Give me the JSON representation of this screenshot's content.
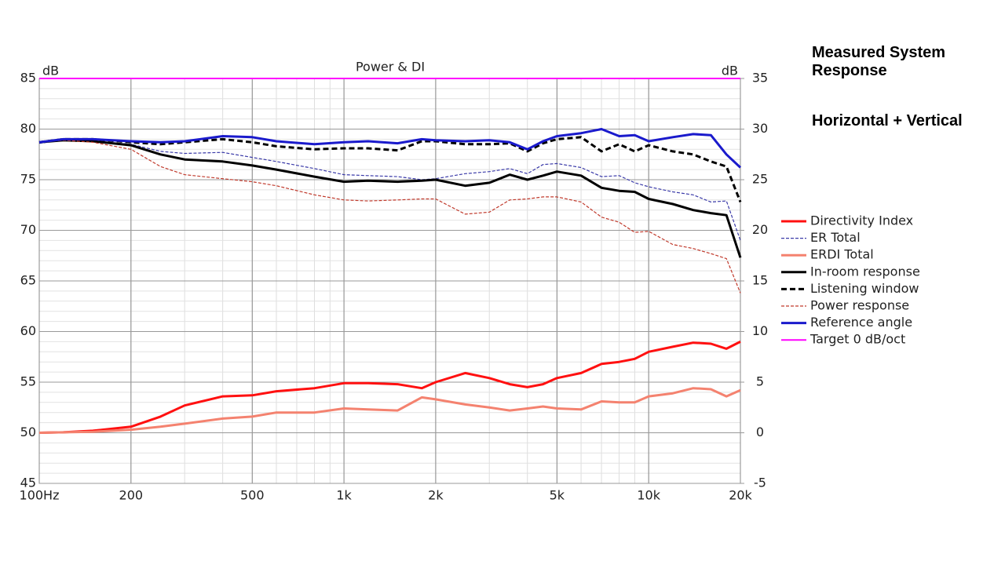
{
  "chart_data": {
    "type": "line",
    "title": "Power & DI",
    "y_label": "dB",
    "y2_label": "dB",
    "annotations": [
      "Measured System Response",
      "Horizontal + Vertical"
    ],
    "log_x": true,
    "grid": true,
    "legend": "right",
    "xlim": [
      100,
      20000
    ],
    "xticks": [
      {
        "value": 100,
        "label": "100Hz"
      },
      200,
      500,
      {
        "value": 1000,
        "label": "1k"
      },
      {
        "value": 2000,
        "label": "2k"
      },
      {
        "value": 5000,
        "label": "5k"
      },
      {
        "value": 10000,
        "label": "10k"
      },
      {
        "value": 20000,
        "label": "20k"
      }
    ],
    "ylim": [
      45,
      85
    ],
    "yticks": [
      45,
      50,
      55,
      60,
      65,
      70,
      75,
      80,
      85
    ],
    "y2lim": [
      -5,
      35
    ],
    "y2ticks": [
      -5,
      0,
      5,
      10,
      15,
      20,
      25,
      30,
      35
    ],
    "x": [
      100,
      120,
      150,
      200,
      250,
      300,
      400,
      500,
      600,
      800,
      1000,
      1200,
      1500,
      1800,
      2000,
      2500,
      3000,
      3500,
      4000,
      4500,
      5000,
      6000,
      7000,
      8000,
      9000,
      10000,
      12000,
      14000,
      16000,
      18000,
      20000
    ],
    "series": [
      {
        "name": "Directivity Index",
        "color": "#ff1010",
        "width": 3,
        "dash": false,
        "axis": "y2",
        "values": [
          0,
          0.05,
          0.2,
          0.6,
          1.6,
          2.7,
          3.6,
          3.7,
          4.1,
          4.4,
          4.9,
          4.9,
          4.8,
          4.4,
          5.0,
          5.9,
          5.4,
          4.8,
          4.5,
          4.8,
          5.4,
          5.9,
          6.8,
          7.0,
          7.3,
          8.0,
          8.5,
          8.9,
          8.8,
          8.3,
          9.0
        ]
      },
      {
        "name": "ER Total",
        "color": "#3a3aa8",
        "width": 1.2,
        "dash": true,
        "values": [
          78.6,
          78.9,
          78.8,
          78.5,
          77.8,
          77.6,
          77.7,
          77.2,
          76.8,
          76.1,
          75.5,
          75.4,
          75.3,
          75.0,
          75.1,
          75.6,
          75.8,
          76.1,
          75.6,
          76.5,
          76.6,
          76.2,
          75.3,
          75.4,
          74.7,
          74.3,
          73.8,
          73.5,
          72.8,
          72.9,
          69.0
        ]
      },
      {
        "name": "ERDI Total",
        "color": "#f4826f",
        "width": 3,
        "dash": false,
        "axis": "y2",
        "values": [
          0,
          0.05,
          0.1,
          0.3,
          0.6,
          0.9,
          1.4,
          1.6,
          2.0,
          2.0,
          2.4,
          2.3,
          2.2,
          3.5,
          3.3,
          2.8,
          2.5,
          2.2,
          2.4,
          2.6,
          2.4,
          2.3,
          3.1,
          3.0,
          3.0,
          3.6,
          3.9,
          4.4,
          4.3,
          3.6,
          4.2
        ]
      },
      {
        "name": "In-room response",
        "color": "#000000",
        "width": 3,
        "dash": false,
        "values": [
          78.7,
          78.9,
          78.8,
          78.4,
          77.5,
          77.0,
          76.8,
          76.4,
          76.0,
          75.3,
          74.8,
          74.9,
          74.8,
          74.9,
          75.0,
          74.4,
          74.7,
          75.5,
          75.0,
          75.4,
          75.8,
          75.4,
          74.2,
          73.9,
          73.8,
          73.1,
          72.6,
          72.0,
          71.7,
          71.5,
          67.3
        ]
      },
      {
        "name": "Listening window",
        "color": "#000000",
        "width": 3,
        "dash": true,
        "values": [
          78.7,
          79.0,
          79.0,
          78.7,
          78.5,
          78.7,
          79.0,
          78.7,
          78.3,
          78.0,
          78.1,
          78.1,
          77.9,
          78.8,
          78.8,
          78.5,
          78.5,
          78.6,
          77.8,
          78.6,
          79.0,
          79.2,
          77.8,
          78.5,
          77.8,
          78.4,
          77.8,
          77.5,
          76.8,
          76.3,
          72.8
        ]
      },
      {
        "name": "Power response",
        "color": "#c0392b",
        "width": 1.2,
        "dash": true,
        "values": [
          78.7,
          78.9,
          78.7,
          78.0,
          76.3,
          75.5,
          75.1,
          74.8,
          74.4,
          73.5,
          73.0,
          72.9,
          73.0,
          73.1,
          73.1,
          71.6,
          71.8,
          73.0,
          73.1,
          73.3,
          73.3,
          72.8,
          71.3,
          70.8,
          69.8,
          69.9,
          68.6,
          68.2,
          67.7,
          67.2,
          63.8
        ]
      },
      {
        "name": "Reference angle",
        "color": "#1a1acc",
        "width": 3,
        "dash": false,
        "values": [
          78.7,
          79.0,
          79.0,
          78.8,
          78.7,
          78.8,
          79.3,
          79.2,
          78.8,
          78.5,
          78.7,
          78.8,
          78.6,
          79.0,
          78.9,
          78.8,
          78.9,
          78.7,
          78.0,
          78.8,
          79.3,
          79.6,
          80.0,
          79.3,
          79.4,
          78.8,
          79.2,
          79.5,
          79.4,
          77.5,
          76.2
        ]
      },
      {
        "name": "Target 0 dB/oct",
        "color": "#ff00ff",
        "width": 2,
        "dash": false,
        "x": [
          100,
          20000
        ],
        "values": [
          85,
          85
        ]
      }
    ]
  }
}
